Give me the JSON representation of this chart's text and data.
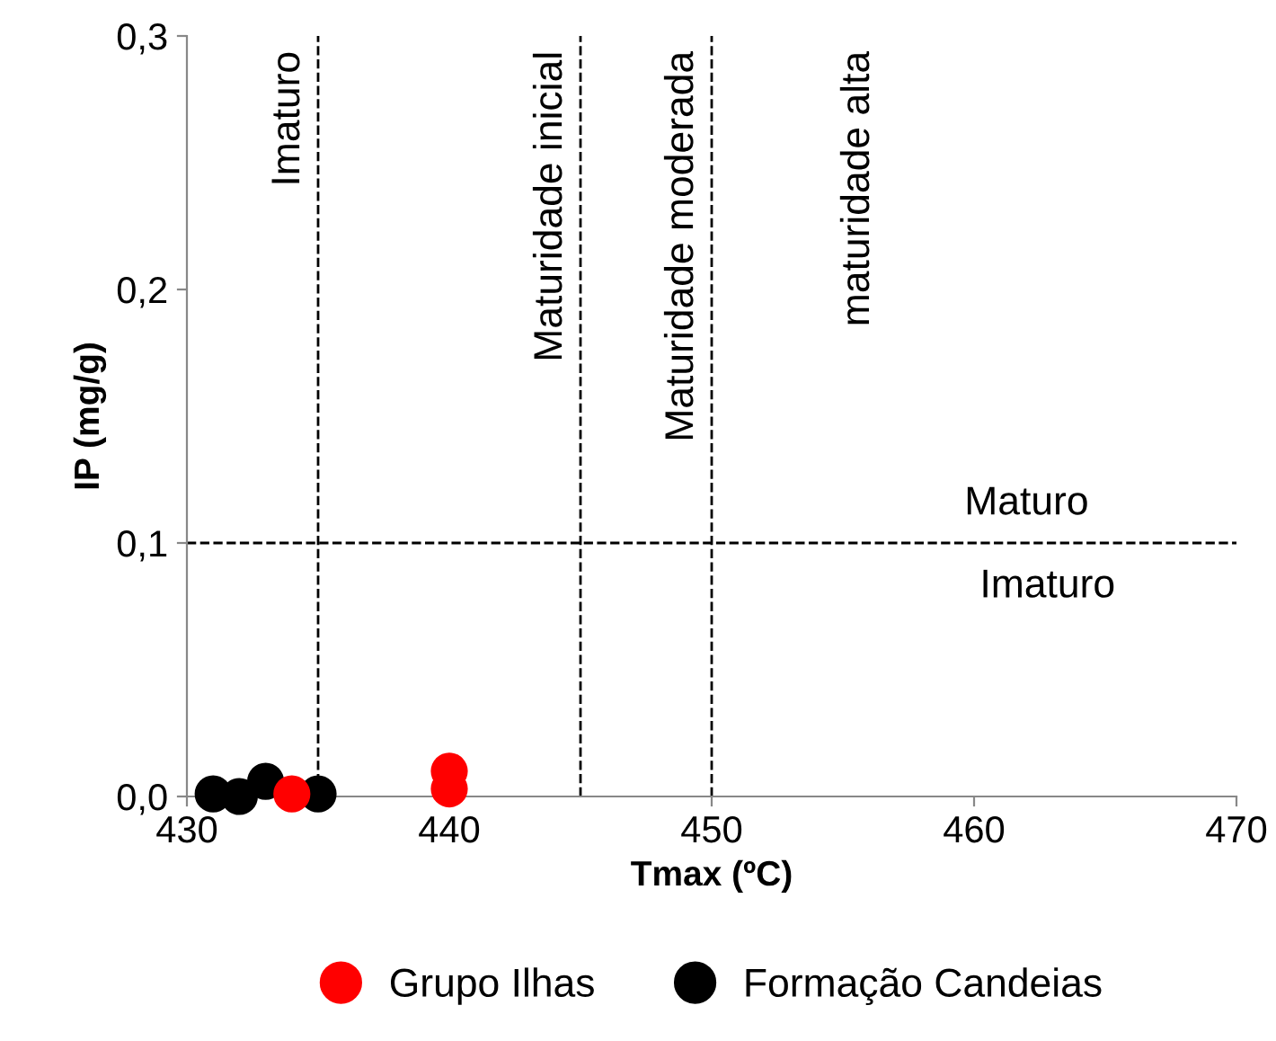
{
  "chart_data": {
    "type": "scatter",
    "xlabel": "Tmax (ºC)",
    "ylabel": "IP (mg/g)",
    "xlim": [
      430,
      470
    ],
    "xticks": [
      430,
      440,
      450,
      460,
      470
    ],
    "ylim": [
      0,
      0.3
    ],
    "yticks": [
      {
        "value": 0,
        "label": "0,0"
      },
      {
        "value": 0.1,
        "label": "0,1"
      },
      {
        "value": 0.2,
        "label": "0,2"
      },
      {
        "value": 0.3,
        "label": "0,3"
      }
    ],
    "series": [
      {
        "name": "Grupo Ilhas",
        "color": "#ff0000",
        "x": [
          434,
          440,
          440
        ],
        "values": [
          0.001,
          0.01,
          0.003
        ]
      },
      {
        "name": "Formação Candeias",
        "color": "#000000",
        "x": [
          431,
          432,
          433,
          435
        ],
        "values": [
          0.001,
          0.0,
          0.006,
          0.001
        ]
      }
    ],
    "ref_lines": [
      {
        "axis": "x",
        "value": 435,
        "label": "Imaturo",
        "line_style": "dashed"
      },
      {
        "axis": "x",
        "value": 445,
        "label": "Maturidade inicial",
        "line_style": "dashed"
      },
      {
        "axis": "x",
        "value": 450,
        "label": "Maturidade moderada",
        "line_style": "dashed"
      },
      {
        "axis": "y",
        "value": 0.1,
        "label": "Maturo",
        "line_style": "dashed"
      }
    ],
    "annotations": [
      "maturidade alta",
      "Imaturo"
    ],
    "marker": "circle",
    "legend": "bottom",
    "grid": false
  }
}
